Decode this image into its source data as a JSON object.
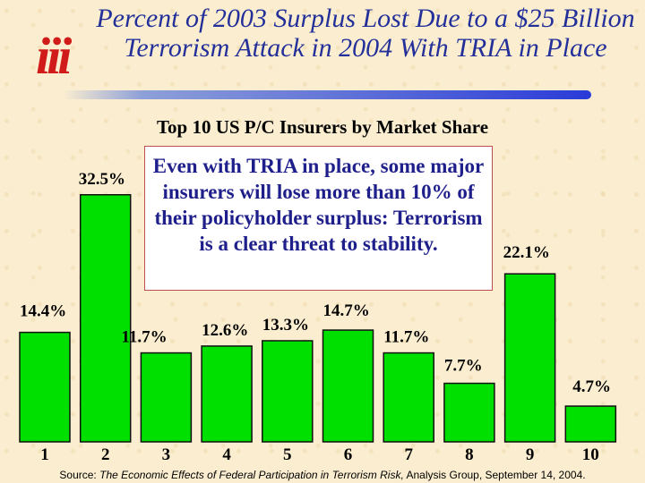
{
  "logo_text": "iii",
  "title": "Percent of 2003 Surplus Lost Due to a $25 Billion Terrorism Attack in 2004 With TRIA in Place",
  "chart_data": {
    "type": "bar",
    "title": "Top 10 US P/C Insurers by Market Share",
    "categories": [
      "1",
      "2",
      "3",
      "4",
      "5",
      "6",
      "7",
      "8",
      "9",
      "10"
    ],
    "values": [
      14.4,
      32.5,
      11.7,
      12.6,
      13.3,
      14.7,
      11.7,
      7.7,
      22.1,
      4.7
    ],
    "data_labels": [
      "14.4%",
      "32.5%",
      "11.7%",
      "12.6%",
      "13.3%",
      "14.7%",
      "11.7%",
      "7.7%",
      "22.1%",
      "4.7%"
    ],
    "ylim": [
      0,
      40
    ],
    "bar_color": "#00e000",
    "grid": false,
    "annotation": "Even with TRIA in place, some major insurers will lose more than 10% of their policyholder surplus: Terrorism is a clear threat to stability."
  },
  "source_prefix": "Source: ",
  "source_title": "The Economic Effects of Federal Participation in Terrorism Risk,",
  "source_suffix": " Analysis Group, September 14, 2004."
}
